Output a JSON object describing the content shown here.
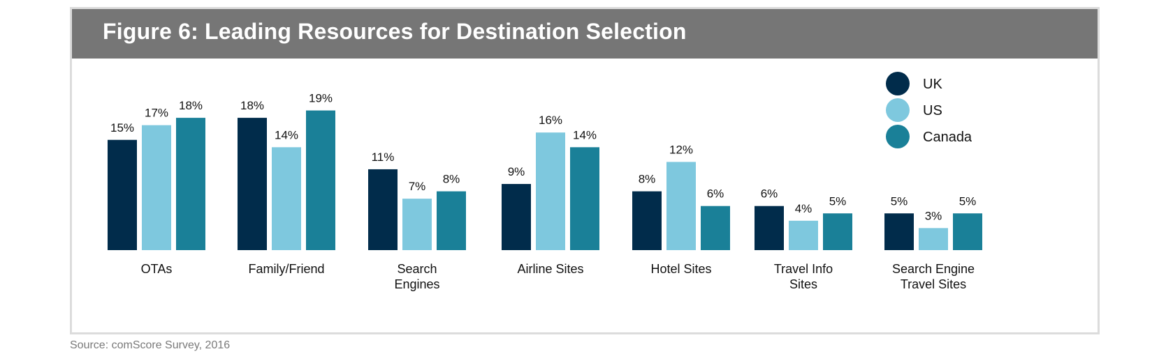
{
  "figure_title": "Figure 6: Leading Resources for Destination Selection",
  "source": "Source: comScore Survey, 2016",
  "colors": {
    "UK": "#012c4b",
    "US": "#7ec8de",
    "Canada": "#1a8098",
    "title_bar": "#767676"
  },
  "chart_data": {
    "type": "bar",
    "title": "Figure 6: Leading Resources for Destination Selection",
    "categories": [
      [
        "OTAs"
      ],
      [
        "Family/Friend"
      ],
      [
        "Search",
        "Engines"
      ],
      [
        "Airline Sites"
      ],
      [
        "Hotel Sites"
      ],
      [
        "Travel Info",
        "Sites"
      ],
      [
        "Search Engine",
        "Travel Sites"
      ]
    ],
    "series": [
      {
        "name": "UK",
        "color": "#012c4b",
        "values": [
          15,
          18,
          11,
          9,
          8,
          6,
          5
        ],
        "labels": [
          "15%",
          "18%",
          "11%",
          "9%",
          "8%",
          "6%",
          "5%"
        ]
      },
      {
        "name": "US",
        "color": "#7ec8de",
        "values": [
          17,
          14,
          7,
          16,
          12,
          4,
          3
        ],
        "labels": [
          "17%",
          "14%",
          "7%",
          "16%",
          "12%",
          "4%",
          "3%"
        ]
      },
      {
        "name": "Canada",
        "color": "#1a8098",
        "values": [
          18,
          19,
          8,
          14,
          6,
          5,
          5
        ],
        "labels": [
          "18%",
          "19%",
          "8%",
          "14%",
          "6%",
          "5%",
          "5%"
        ]
      }
    ],
    "unit": "%",
    "ylim": [
      0,
      19
    ],
    "legend_position": "top-right",
    "grid": false,
    "y_axis_shown": false
  }
}
